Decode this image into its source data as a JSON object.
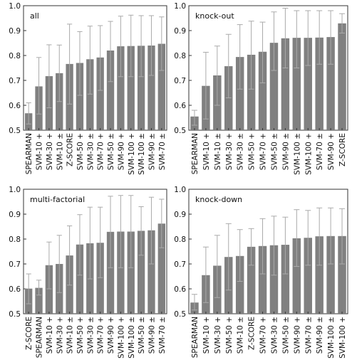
{
  "chart_data": [
    {
      "type": "bar",
      "title": "all",
      "ylim": [
        0.5,
        1.0
      ],
      "yticks": [
        "0.5",
        "0.6",
        "0.7",
        "0.8",
        "0.9",
        "1.0"
      ],
      "categories": [
        "SPEARMAN",
        "SVM-10 +",
        "SVM-30 +",
        "SVM-10 ±",
        "Z-SCORE",
        "SVM-50 +",
        "SVM-30 ±",
        "SVM-70 +",
        "SVM-50 ±",
        "SVM-90 +",
        "SVM-100 +",
        "SVM-100 ±",
        "SVM-90 ±",
        "SVM-70 ±"
      ],
      "values": [
        0.568,
        0.676,
        0.717,
        0.729,
        0.766,
        0.77,
        0.785,
        0.792,
        0.82,
        0.837,
        0.838,
        0.839,
        0.84,
        0.847
      ],
      "err_low": [
        0.525,
        0.565,
        0.59,
        0.615,
        0.605,
        0.64,
        0.645,
        0.66,
        0.695,
        0.715,
        0.715,
        0.715,
        0.72,
        0.74
      ],
      "err_high": [
        0.61,
        0.792,
        0.843,
        0.842,
        0.926,
        0.896,
        0.918,
        0.92,
        0.937,
        0.958,
        0.962,
        0.96,
        0.96,
        0.955
      ],
      "grid": false,
      "legend": "none"
    },
    {
      "type": "bar",
      "title": "knock-out",
      "ylim": [
        0.5,
        1.0
      ],
      "yticks": [
        "0.5",
        "0.6",
        "0.7",
        "0.8",
        "0.9",
        "1.0"
      ],
      "categories": [
        "SPEARMAN",
        "SVM-10 +",
        "SVM-10 ±",
        "SVM-30 +",
        "SVM-30 ±",
        "SVM-50 +",
        "SVM-70 +",
        "SVM-50 ±",
        "SVM-90 ±",
        "SVM-100 ±",
        "SVM-100 +",
        "SVM-70 ±",
        "SVM-90 +",
        "Z-SCORE"
      ],
      "values": [
        0.555,
        0.678,
        0.72,
        0.757,
        0.794,
        0.803,
        0.815,
        0.851,
        0.869,
        0.871,
        0.871,
        0.872,
        0.874,
        0.929
      ],
      "err_low": [
        0.52,
        0.545,
        0.6,
        0.63,
        0.665,
        0.665,
        0.69,
        0.74,
        0.75,
        0.75,
        0.76,
        0.765,
        0.765,
        0.89
      ],
      "err_high": [
        0.58,
        0.813,
        0.838,
        0.885,
        0.924,
        0.938,
        0.934,
        0.975,
        0.99,
        0.98,
        0.98,
        0.98,
        0.98,
        0.968
      ],
      "grid": false,
      "legend": "none"
    },
    {
      "type": "bar",
      "title": "multi-factorial",
      "ylim": [
        0.5,
        1.0
      ],
      "yticks": [
        "0.5",
        "0.6",
        "0.7",
        "0.8",
        "0.9",
        "1.0"
      ],
      "categories": [
        "Z-SCORE",
        "SPEARMAN",
        "SVM-10 +",
        "SVM-30 +",
        "SVM-10 ±",
        "SVM-50 +",
        "SVM-30 ±",
        "SVM-70 +",
        "SVM-90 +",
        "SVM-100 +",
        "SVM-100 ±",
        "SVM-50 ±",
        "SVM-90 ±",
        "SVM-70 ±"
      ],
      "values": [
        0.601,
        0.604,
        0.695,
        0.7,
        0.734,
        0.778,
        0.783,
        0.785,
        0.829,
        0.83,
        0.83,
        0.833,
        0.835,
        0.862
      ],
      "err_low": [
        0.54,
        0.575,
        0.6,
        0.585,
        0.615,
        0.655,
        0.64,
        0.645,
        0.685,
        0.685,
        0.685,
        0.735,
        0.7,
        0.765
      ],
      "err_high": [
        0.66,
        0.635,
        0.788,
        0.815,
        0.853,
        0.898,
        0.928,
        0.928,
        0.972,
        0.975,
        0.975,
        0.93,
        0.968,
        0.96
      ],
      "grid": false,
      "legend": "none"
    },
    {
      "type": "bar",
      "title": "knock-down",
      "ylim": [
        0.5,
        1.0
      ],
      "yticks": [
        "0.5",
        "0.6",
        "0.7",
        "0.8",
        "0.9",
        "1.0"
      ],
      "categories": [
        "SPEARMAN",
        "SVM-10 +",
        "SVM-30 +",
        "SVM-50 +",
        "SVM-10 ±",
        "Z-SCORE",
        "SVM-70 +",
        "SVM-30 ±",
        "SVM-50 ±",
        "SVM-90 +",
        "SVM-70 ±",
        "SVM-90 ±",
        "SVM-100 ±",
        "SVM-100 +"
      ],
      "values": [
        0.545,
        0.655,
        0.693,
        0.728,
        0.732,
        0.769,
        0.772,
        0.775,
        0.777,
        0.803,
        0.805,
        0.811,
        0.812,
        0.812
      ],
      "err_low": [
        0.515,
        0.545,
        0.565,
        0.595,
        0.63,
        0.695,
        0.66,
        0.655,
        0.66,
        0.69,
        0.695,
        0.695,
        0.7,
        0.7
      ],
      "err_high": [
        0.578,
        0.768,
        0.815,
        0.862,
        0.838,
        0.842,
        0.882,
        0.892,
        0.888,
        0.918,
        0.915,
        0.925,
        0.925,
        0.922
      ],
      "grid": false,
      "legend": "none"
    }
  ],
  "colors": {
    "bar": "#808080",
    "error_bar": "#aaaaaa",
    "axis": "#333333",
    "text": "#111111"
  }
}
